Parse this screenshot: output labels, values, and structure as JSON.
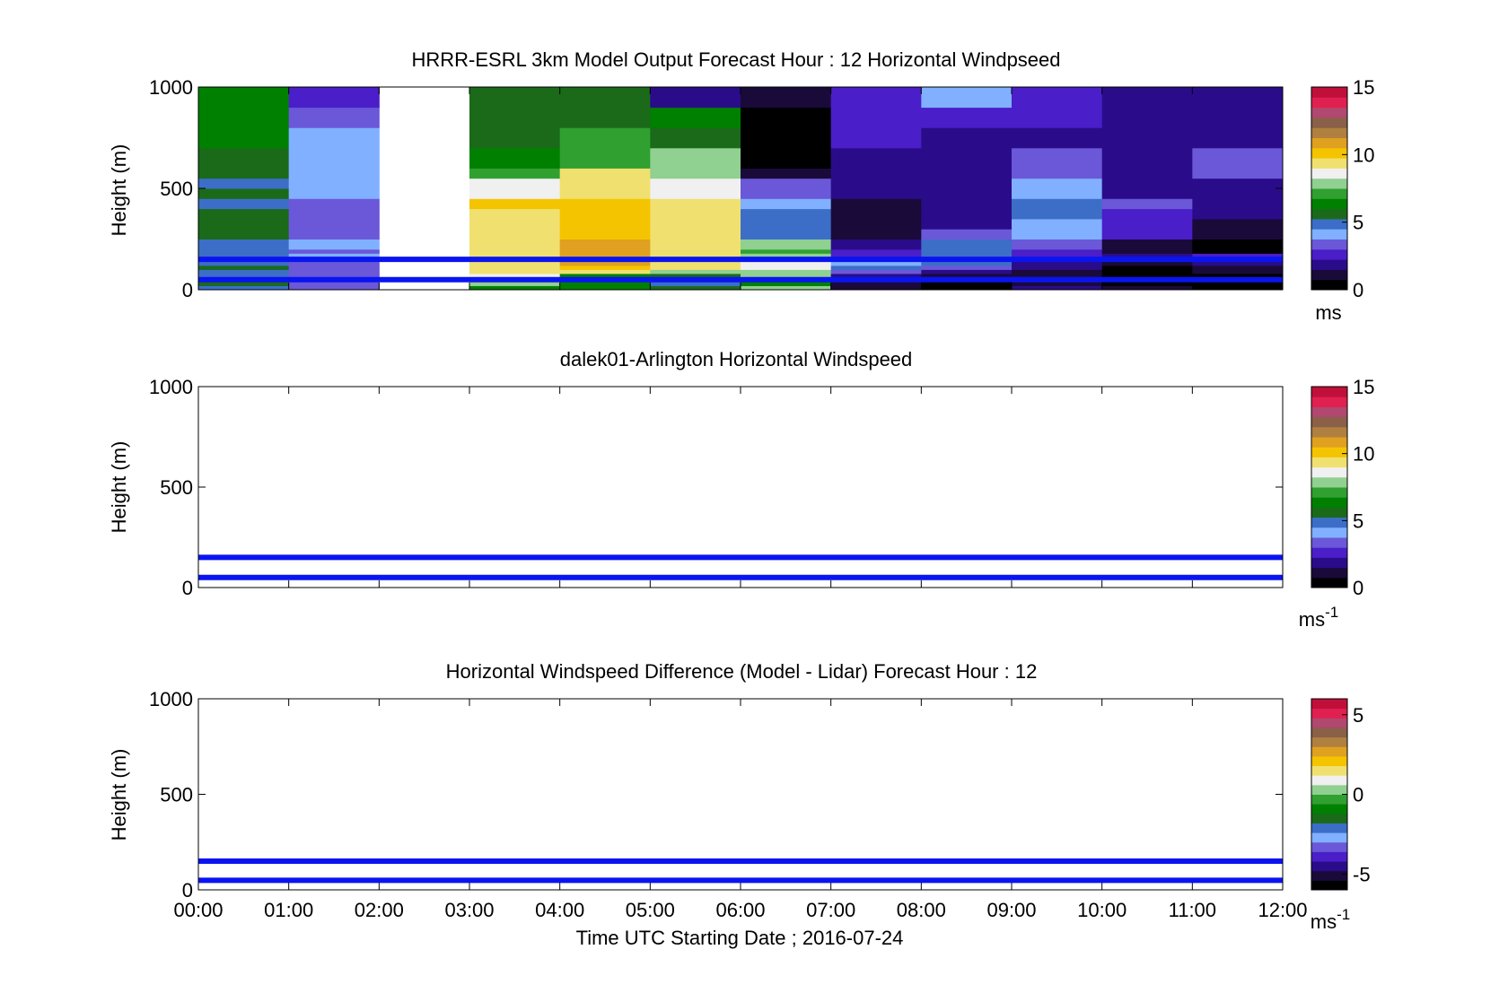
{
  "figure": {
    "xlabel": "Time UTC  Starting Date ; 2016-07-24",
    "x_ticks": [
      "00:00",
      "01:00",
      "02:00",
      "03:00",
      "04:00",
      "05:00",
      "06:00",
      "07:00",
      "08:00",
      "09:00",
      "10:00",
      "11:00",
      "12:00"
    ]
  },
  "chart_data": [
    {
      "type": "heatmap",
      "title": "HRRR-ESRL 3km Model Output   Forecast Hour : 12 Horizontal Windpseed",
      "ylabel": "Height (m)",
      "ylim": [
        0,
        1000
      ],
      "y_ticks": [
        "0",
        "500",
        "1000"
      ],
      "colorbar": {
        "min": 0,
        "max": 15,
        "ticks": [
          "0",
          "5",
          "10",
          "15"
        ],
        "unit": "ms"
      },
      "time_bins_hours": [
        0,
        1,
        2,
        3,
        4,
        5,
        6,
        7,
        8,
        9,
        10,
        11
      ],
      "height_bins_m": [
        20,
        40,
        60,
        80,
        100,
        120,
        140,
        160,
        180,
        200,
        250,
        300,
        350,
        400,
        450,
        500,
        550,
        600,
        700,
        800,
        900,
        1000
      ],
      "reference_lines_m": [
        150,
        50
      ],
      "reference_line_color": "#0a14f0",
      "values": [
        [
          5.0,
          3.3,
          null,
          6.5,
          6.5,
          5.5,
          8.0,
          0.8,
          0.5,
          1.5,
          0.9,
          0.3
        ],
        [
          5.5,
          3.1,
          null,
          7.6,
          6.5,
          5.0,
          6.4,
          0.8,
          0.5,
          1.2,
          0.7,
          0.5
        ],
        [
          5.3,
          2.8,
          null,
          7.8,
          6.3,
          5.0,
          7.6,
          1.2,
          1.0,
          1.0,
          0.5,
          0.6
        ],
        [
          5.1,
          3.0,
          null,
          8.6,
          6.6,
          5.5,
          7.6,
          1.5,
          1.2,
          1.2,
          0.5,
          0.7
        ],
        [
          5.2,
          3.6,
          null,
          9.4,
          9.4,
          7.8,
          8.2,
          3.4,
          2.0,
          1.4,
          0.6,
          0.8
        ],
        [
          5.4,
          3.6,
          null,
          9.3,
          10.2,
          9.3,
          8.9,
          4.6,
          3.4,
          2.2,
          0.5,
          1.3
        ],
        [
          5.0,
          3.7,
          null,
          9.4,
          10.5,
          9.6,
          8.3,
          3.8,
          4.5,
          2.0,
          0.8,
          1.5
        ],
        [
          5.2,
          3.8,
          null,
          9.6,
          10.7,
          9.7,
          8.9,
          2.3,
          5.0,
          1.6,
          1.0,
          2.0
        ],
        [
          5.0,
          3.8,
          null,
          9.6,
          10.7,
          9.7,
          7.8,
          2.5,
          5.0,
          2.5,
          2.0,
          2.4
        ],
        [
          5.2,
          3.7,
          null,
          9.6,
          10.7,
          9.7,
          7.0,
          2.5,
          5.0,
          2.8,
          1.2,
          0.5
        ],
        [
          5.2,
          3.8,
          null,
          9.6,
          10.6,
          9.7,
          7.6,
          1.5,
          5.0,
          3.5,
          1.2,
          0.5
        ],
        [
          5.3,
          3.4,
          null,
          9.4,
          10.4,
          9.6,
          5.2,
          0.8,
          3.6,
          4.2,
          2.5,
          0.8
        ],
        [
          5.4,
          3.5,
          null,
          9.4,
          10.3,
          9.6,
          4.5,
          0.9,
          1.6,
          4.4,
          2.7,
          1.0
        ],
        [
          5.5,
          3.6,
          null,
          9.6,
          9.8,
          9.7,
          4.5,
          1.2,
          1.8,
          4.8,
          2.7,
          1.6
        ],
        [
          5.0,
          3.6,
          null,
          10.0,
          9.8,
          9.7,
          4.3,
          1.4,
          1.8,
          4.6,
          3.0,
          1.8
        ],
        [
          5.4,
          3.8,
          null,
          8.7,
          9.6,
          8.6,
          3.5,
          1.8,
          1.6,
          4.0,
          2.1,
          1.8
        ],
        [
          5.2,
          3.8,
          null,
          8.7,
          9.6,
          8.6,
          3.5,
          1.8,
          1.6,
          4.0,
          2.1,
          1.8
        ],
        [
          5.4,
          3.8,
          null,
          7.4,
          9.0,
          7.6,
          1.2,
          2.0,
          1.6,
          3.2,
          1.6,
          3.2
        ],
        [
          5.5,
          4.0,
          null,
          6.2,
          7.2,
          7.6,
          0.6,
          2.2,
          1.6,
          3.2,
          1.6,
          3.2
        ],
        [
          6.0,
          3.8,
          null,
          5.6,
          7.4,
          5.4,
          0.4,
          2.8,
          2.0,
          2.2,
          1.6,
          2.1
        ],
        [
          6.3,
          3.6,
          null,
          5.5,
          5.8,
          6.2,
          0.7,
          2.8,
          2.8,
          2.4,
          1.6,
          2.0
        ],
        [
          6.6,
          2.8,
          null,
          5.4,
          5.9,
          2.0,
          1.0,
          2.8,
          3.8,
          2.8,
          1.8,
          1.8
        ]
      ]
    },
    {
      "type": "heatmap",
      "title": "dalek01-Arlington  Horizontal Windspeed",
      "ylabel": "Height (m)",
      "ylim": [
        0,
        1000
      ],
      "y_ticks": [
        "0",
        "500",
        "1000"
      ],
      "colorbar": {
        "min": 0,
        "max": 15,
        "ticks": [
          "0",
          "5",
          "10",
          "15"
        ],
        "unit": "ms",
        "unit_exp": "-1"
      },
      "reference_lines_m": [
        150,
        50
      ],
      "values": []
    },
    {
      "type": "heatmap",
      "title": "Horizontal Windspeed Difference (Model - Lidar) Forecast Hour : 12",
      "ylabel": "Height (m)",
      "ylim": [
        0,
        1000
      ],
      "y_ticks": [
        "0",
        "500",
        "1000"
      ],
      "colorbar": {
        "min": -6,
        "max": 6,
        "ticks": [
          "-5",
          "0",
          "5"
        ],
        "unit": "ms",
        "unit_exp": "-1"
      },
      "reference_lines_m": [
        150,
        50
      ],
      "values": []
    }
  ],
  "colormap": [
    "#000000",
    "#1a0a3a",
    "#2a0c8a",
    "#4a1ec8",
    "#6a58d8",
    "#80b0ff",
    "#3c6ec8",
    "#1a6a1a",
    "#008000",
    "#30a030",
    "#90d090",
    "#f0f0f0",
    "#f0e070",
    "#f5c400",
    "#e0a020",
    "#b08040",
    "#8a6048",
    "#b04870",
    "#e02050",
    "#c0103a"
  ]
}
